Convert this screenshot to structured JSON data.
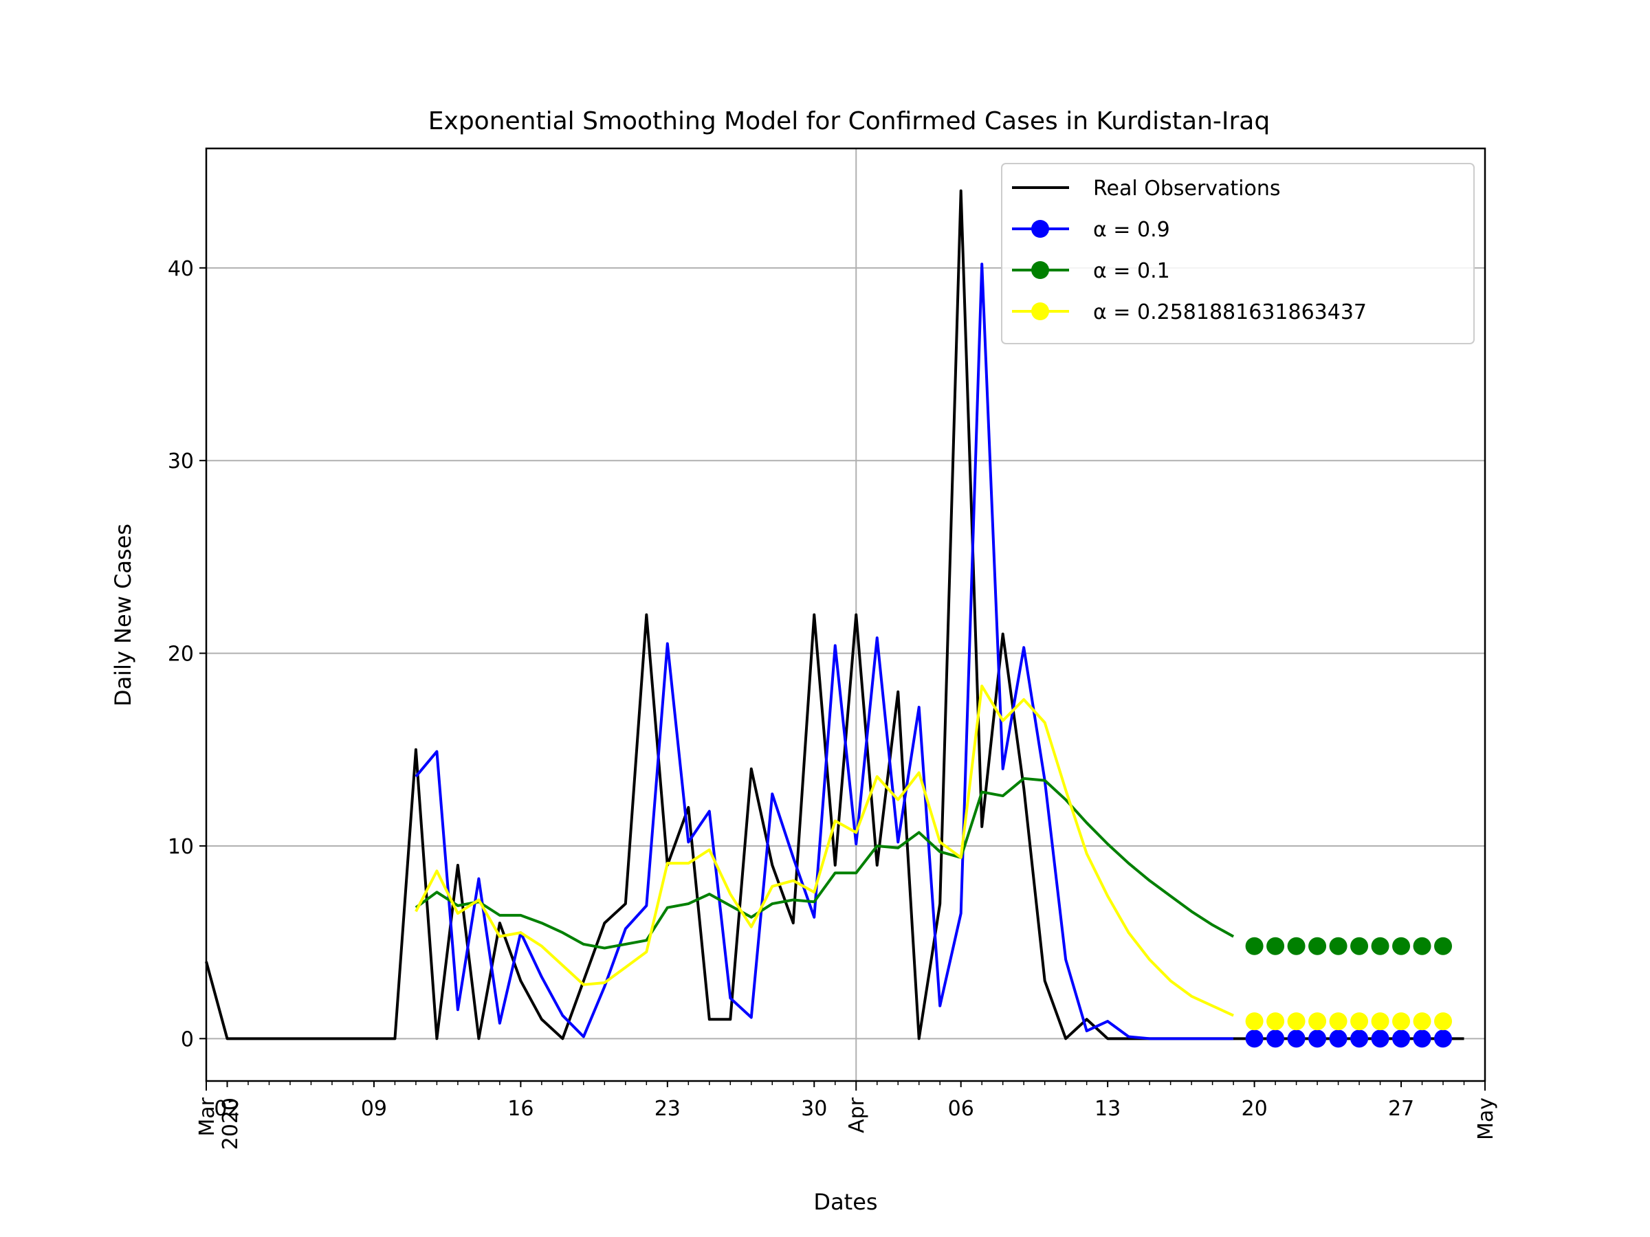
{
  "chart_data": {
    "type": "line",
    "title": "Exponential Smoothing Model for Confirmed Cases in Kurdistan-Iraq",
    "xlabel": "Dates",
    "ylabel": "Daily New Cases",
    "x_range": [
      "2020-03-01",
      "2020-05-01"
    ],
    "ylim": [
      -2.2,
      46.2
    ],
    "grid": true,
    "legend_position": "top-right",
    "yticks": [
      0,
      10,
      20,
      30,
      40
    ],
    "xticks_major": [
      {
        "date": "2020-03-01",
        "label": "Mar\n2020"
      },
      {
        "date": "2020-04-01",
        "label": "Apr"
      },
      {
        "date": "2020-05-01",
        "label": "May"
      }
    ],
    "xticks_minor": [
      {
        "date": "2020-03-02",
        "label": "02"
      },
      {
        "date": "2020-03-09",
        "label": "09"
      },
      {
        "date": "2020-03-16",
        "label": "16"
      },
      {
        "date": "2020-03-23",
        "label": "23"
      },
      {
        "date": "2020-03-30",
        "label": "30"
      },
      {
        "date": "2020-04-06",
        "label": "06"
      },
      {
        "date": "2020-04-13",
        "label": "13"
      },
      {
        "date": "2020-04-20",
        "label": "20"
      },
      {
        "date": "2020-04-27",
        "label": "27"
      }
    ],
    "series": [
      {
        "name": "Real Observations",
        "color": "#000000",
        "marker": false,
        "start_date": "2020-03-01",
        "values": [
          4,
          0,
          0,
          0,
          0,
          0,
          0,
          0,
          0,
          0,
          15,
          0,
          9,
          0,
          6,
          3,
          1,
          0,
          3,
          6,
          7,
          22,
          9,
          12,
          1,
          1,
          14,
          9,
          6,
          22,
          9,
          22,
          9,
          18,
          0,
          7,
          44,
          11,
          21,
          13,
          3,
          0,
          1,
          0,
          0,
          0,
          0,
          0,
          0,
          0,
          0,
          0,
          0,
          0,
          0,
          0,
          0,
          0,
          0,
          0,
          0
        ]
      },
      {
        "name": "$\\alpha=0.9$",
        "legend_text": "α = 0.9",
        "color": "#0000ff",
        "marker": true,
        "start_date": "2020-03-11",
        "values": [
          13.6,
          14.9,
          1.5,
          8.3,
          0.8,
          5.5,
          3.2,
          1.2,
          0.1,
          2.7,
          5.7,
          6.9,
          20.5,
          10.2,
          11.8,
          2.1,
          1.1,
          12.7,
          9.4,
          6.3,
          20.4,
          10.1,
          20.8,
          10.2,
          17.2,
          1.7,
          6.5,
          40.2,
          14.0,
          20.3,
          13.4,
          4.1,
          0.4,
          0.9,
          0.1,
          0.0,
          0.0,
          0.0,
          0.0,
          0.0
        ],
        "forecast_start_date": "2020-04-20",
        "forecast_values": [
          0,
          0,
          0,
          0,
          0,
          0,
          0,
          0,
          0,
          0
        ]
      },
      {
        "name": "$\\alpha=0.1$",
        "legend_text": "α = 0.1",
        "color": "#008000",
        "marker": true,
        "start_date": "2020-03-11",
        "values": [
          6.8,
          7.6,
          6.9,
          7.1,
          6.4,
          6.4,
          6.0,
          5.5,
          4.9,
          4.7,
          4.9,
          5.1,
          6.8,
          7.0,
          7.5,
          6.9,
          6.3,
          7.0,
          7.2,
          7.1,
          8.6,
          8.6,
          10.0,
          9.9,
          10.7,
          9.7,
          9.4,
          12.8,
          12.6,
          13.5,
          13.4,
          12.4,
          11.2,
          10.1,
          9.1,
          8.2,
          7.4,
          6.6,
          5.9,
          5.3
        ],
        "forecast_start_date": "2020-04-20",
        "forecast_values": [
          4.8,
          4.8,
          4.8,
          4.8,
          4.8,
          4.8,
          4.8,
          4.8,
          4.8,
          4.8
        ]
      },
      {
        "name": "$\\alpha=0.2581881631863437$",
        "legend_text": "α = 0.2581881631863437",
        "color": "#ffff00",
        "marker": true,
        "start_date": "2020-03-11",
        "values": [
          6.6,
          8.7,
          6.5,
          7.2,
          5.3,
          5.5,
          4.8,
          3.8,
          2.8,
          2.9,
          3.7,
          4.5,
          9.1,
          9.1,
          9.8,
          7.5,
          5.8,
          7.9,
          8.2,
          7.6,
          11.3,
          10.7,
          13.6,
          12.4,
          13.8,
          10.2,
          9.4,
          18.3,
          16.5,
          17.6,
          16.4,
          12.9,
          9.6,
          7.4,
          5.5,
          4.1,
          3.0,
          2.2,
          1.7,
          1.2
        ],
        "forecast_start_date": "2020-04-20",
        "forecast_values": [
          0.9,
          0.9,
          0.9,
          0.9,
          0.9,
          0.9,
          0.9,
          0.9,
          0.9,
          0.9
        ]
      }
    ]
  }
}
